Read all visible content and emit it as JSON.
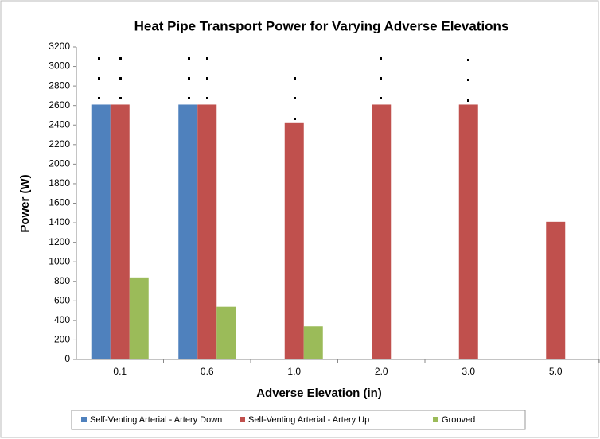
{
  "chart_data": {
    "type": "bar",
    "title": "Heat Pipe Transport Power for Varying Adverse Elevations",
    "x_label": "Adverse Elevation (in)",
    "y_label": "Power (W)",
    "categories": [
      "0.1",
      "0.6",
      "1.0",
      "2.0",
      "3.0",
      "5.0"
    ],
    "series": [
      {
        "name": "Self-Venting Arterial - Artery Down",
        "color": "#4f81bd",
        "values": [
          2610,
          2610,
          null,
          null,
          null,
          null
        ]
      },
      {
        "name": "Self-Venting Arterial - Artery Up",
        "color": "#c0504d",
        "values": [
          2610,
          2610,
          2420,
          2610,
          2610,
          1410
        ]
      },
      {
        "name": "Grooved",
        "color": "#9bbb59",
        "values": [
          840,
          540,
          340,
          null,
          null,
          null
        ]
      }
    ],
    "ylim": [
      0,
      3200
    ],
    "yticks": [
      0,
      200,
      400,
      600,
      800,
      1000,
      1200,
      1400,
      1600,
      1800,
      2000,
      2200,
      2400,
      2600,
      2800,
      3000,
      3200
    ],
    "grid": false,
    "legend": "bottom"
  }
}
